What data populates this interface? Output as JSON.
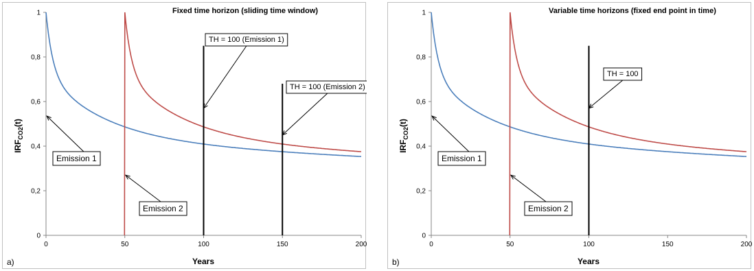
{
  "chart_data": [
    {
      "type": "line",
      "panel_label": "a)",
      "title": "Fixed time horizon (sliding time window)",
      "xlabel": "Years",
      "ylabel_main": "IRF",
      "ylabel_sub": "CO2",
      "ylabel_tail": "(t)",
      "xlim": [
        0,
        200
      ],
      "ylim": [
        0,
        1
      ],
      "x_ticks": [
        "0",
        "50",
        "100",
        "150",
        "200"
      ],
      "y_ticks": [
        "0",
        "0,2",
        "0,4",
        "0,6",
        "0,8",
        "1"
      ],
      "grid": false,
      "series": [
        {
          "name": "Emission 1",
          "color": "#4a7ebb",
          "start": 0
        },
        {
          "name": "Emission 2",
          "color": "#be4b48",
          "start": 50
        }
      ],
      "vertical_lines": [
        {
          "x": 100,
          "y_top": 0.85,
          "label": "TH = 100 (Emission 1)"
        },
        {
          "x": 150,
          "y_top": 0.68,
          "label": "TH = 100 (Emission 2)"
        }
      ],
      "annotations": [
        "Emission 1",
        "Emission 2"
      ]
    },
    {
      "type": "line",
      "panel_label": "b)",
      "title": "Variable time horizons (fixed end point in time)",
      "xlabel": "Years",
      "ylabel_main": "IRF",
      "ylabel_sub": "CO2",
      "ylabel_tail": "(t)",
      "xlim": [
        0,
        200
      ],
      "ylim": [
        0,
        1
      ],
      "x_ticks": [
        "0",
        "50",
        "100",
        "150",
        "200"
      ],
      "y_ticks": [
        "0",
        "0,2",
        "0,4",
        "0,6",
        "0,8",
        "1"
      ],
      "grid": false,
      "series": [
        {
          "name": "Emission 1",
          "color": "#4a7ebb",
          "start": 0
        },
        {
          "name": "Emission 2",
          "color": "#be4b48",
          "start": 50
        }
      ],
      "vertical_lines": [
        {
          "x": 100,
          "y_top": 0.85,
          "label": "TH = 100"
        }
      ],
      "annotations": [
        "Emission 1",
        "Emission 2"
      ]
    }
  ]
}
